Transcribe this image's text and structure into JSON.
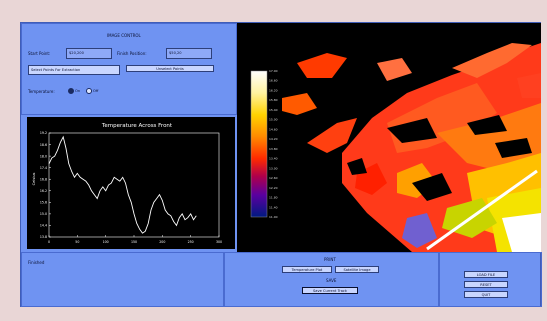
{
  "control": {
    "title": "IMAGE CONTROL",
    "start_label": "Start Point:",
    "start_value": "$20,200",
    "finish_label": "Finish Position:",
    "finish_value": "$50,20",
    "select_btn": "Select Points For Extraction",
    "unselect_btn": "Unselect Points",
    "temp_label": "Temperature:",
    "temp_on": "On",
    "temp_off": "Off",
    "temp_selected": "On"
  },
  "chart_data": {
    "type": "line",
    "title": "Temperature Across Front",
    "ylabel": "Celsius",
    "xlim": [
      0,
      300
    ],
    "ylim": [
      13.8,
      19.2
    ],
    "xticks": [
      "0",
      "50",
      "100",
      "150",
      "200",
      "250",
      "300"
    ],
    "yticks": [
      "13.8",
      "14.4",
      "15.0",
      "15.6",
      "16.2",
      "16.8",
      "17.4",
      "18.0",
      "18.6",
      "19.2"
    ],
    "series": [
      {
        "x": [
          0,
          5,
          10,
          15,
          20,
          25,
          30,
          35,
          40,
          45,
          50,
          55,
          60,
          65,
          70,
          75,
          80,
          85,
          90,
          95,
          100,
          105,
          110,
          115,
          120,
          125,
          130,
          135,
          140,
          145,
          150,
          155,
          160,
          165,
          170,
          175,
          180,
          185,
          190,
          195,
          200,
          205,
          210,
          215,
          220,
          225,
          230,
          235,
          240,
          245,
          250,
          255,
          260
        ],
        "values": [
          17.6,
          17.9,
          18.0,
          18.3,
          18.7,
          19.0,
          18.4,
          17.6,
          17.2,
          16.9,
          17.1,
          16.9,
          16.8,
          16.7,
          16.5,
          16.2,
          16.0,
          15.8,
          16.2,
          16.4,
          16.2,
          16.5,
          16.6,
          16.9,
          16.8,
          16.7,
          16.9,
          16.6,
          16.0,
          15.6,
          15.0,
          14.5,
          14.2,
          14.0,
          14.1,
          14.5,
          15.2,
          15.6,
          15.8,
          16.0,
          15.7,
          15.2,
          15.0,
          14.9,
          14.6,
          14.4,
          14.8,
          15.0,
          14.7,
          14.8,
          15.0,
          14.7,
          14.9
        ]
      }
    ]
  },
  "colorbar": {
    "ticks": [
      "17.00",
      "16.60",
      "16.20",
      "15.80",
      "15.40",
      "15.00",
      "14.60",
      "14.20",
      "13.80",
      "13.40",
      "13.00",
      "12.60",
      "12.20",
      "11.80",
      "11.40",
      "11.00"
    ]
  },
  "status": {
    "text": "Finished"
  },
  "print": {
    "title": "PRINT",
    "temp_plot": "Temperature Plot",
    "satellite_image": "Satellite Image",
    "save_title": "SAVE",
    "save_track": "Save Current Track"
  },
  "actions": {
    "load": "LOAD FILE",
    "reset": "RESET",
    "quit": "QUIT"
  },
  "colors": {
    "window": "#6f93f2",
    "plot_bg": "#000000",
    "plot_line": "#ffffff"
  }
}
